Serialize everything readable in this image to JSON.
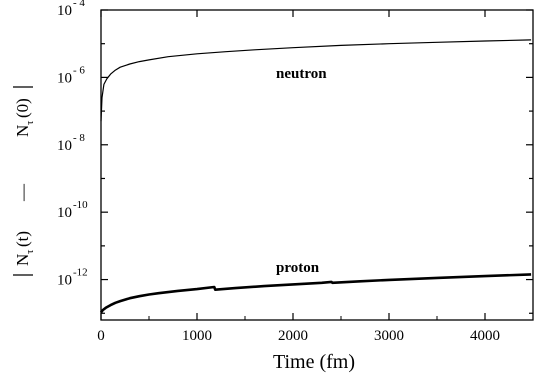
{
  "chart_data": {
    "type": "line",
    "xlabel": "Time  (fm)",
    "ylabel": {
      "left_part": "N",
      "left_sub": "τ",
      "left_arg": "(t)",
      "minus": "—",
      "right_part": "N",
      "right_sub": "τ",
      "right_arg": "(0)"
    },
    "x_ticks": [
      "0",
      "1000",
      "2000",
      "3000",
      "4000"
    ],
    "x_tick_values": [
      0,
      1000,
      2000,
      3000,
      4000
    ],
    "y_ticks": [
      {
        "base": "10",
        "exp": "- 4",
        "value": -4
      },
      {
        "base": "10",
        "exp": "- 6",
        "value": -6
      },
      {
        "base": "10",
        "exp": "- 8",
        "value": -8
      },
      {
        "base": "10",
        "exp": "-10",
        "value": -10
      },
      {
        "base": "10",
        "exp": "-12",
        "value": -12
      }
    ],
    "xlim": [
      0,
      4500
    ],
    "ylim_log10": [
      -13.2,
      -4
    ],
    "yscale": "log",
    "grid": false,
    "series": [
      {
        "name": "neutron",
        "label": "neutron",
        "stroke_width": 1.2,
        "x": [
          0,
          10,
          30,
          60,
          100,
          150,
          200,
          300,
          400,
          500,
          700,
          1000,
          1300,
          1600,
          2000,
          2500,
          3000,
          3500,
          4000,
          4480
        ],
        "y": [
          5e-08,
          2.5e-07,
          6.2e-07,
          9e-07,
          1.25e-06,
          1.65e-06,
          2e-06,
          2.5e-06,
          2.95e-06,
          3.3e-06,
          4.1e-06,
          5e-06,
          5.8e-06,
          6.6e-06,
          7.6e-06,
          8.9e-06,
          1e-05,
          1.1e-05,
          1.2e-05,
          1.3e-05
        ]
      },
      {
        "name": "proton",
        "label": "proton",
        "stroke_width": 2.6,
        "x": [
          0,
          20,
          50,
          100,
          150,
          200,
          300,
          400,
          500,
          600,
          800,
          1000,
          1180,
          1190,
          1400,
          1700,
          2000,
          2300,
          2400,
          2410,
          2700,
          3000,
          3500,
          4000,
          4480
        ],
        "y": [
          1.05e-13,
          1.25e-13,
          1.45e-13,
          1.75e-13,
          2.05e-13,
          2.3e-13,
          2.8e-13,
          3.2e-13,
          3.6e-13,
          3.95e-13,
          4.6e-13,
          5.2e-13,
          6e-13,
          5e-13,
          5.6e-13,
          6.4e-13,
          7.2e-13,
          8e-13,
          8.5e-13,
          8e-13,
          8.9e-13,
          9.8e-13,
          1.12e-12,
          1.27e-12,
          1.42e-12
        ]
      }
    ]
  }
}
